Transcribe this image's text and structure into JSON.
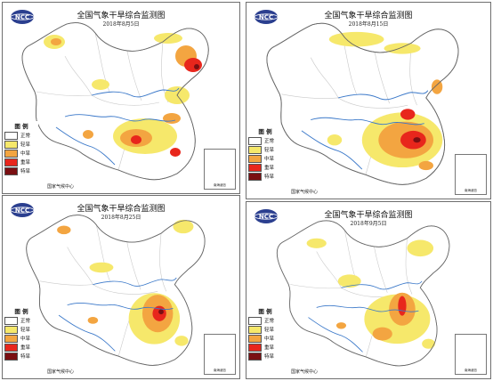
{
  "map_title": "全国气象干旱综合监测图",
  "agency": "国家气候中心",
  "logo_text": "NCC",
  "inset_label": "南海诸岛",
  "legend": {
    "title": "图 例",
    "items": [
      {
        "label": "正常",
        "color": "#ffffff"
      },
      {
        "label": "轻旱",
        "color": "#f6e86b"
      },
      {
        "label": "中旱",
        "color": "#f3a541"
      },
      {
        "label": "重旱",
        "color": "#e8261c"
      },
      {
        "label": "特旱",
        "color": "#7a0f12"
      }
    ]
  },
  "maps": [
    {
      "id": "p1",
      "date": "2018年8月5日"
    },
    {
      "id": "p2",
      "date": "2018年8月15日"
    },
    {
      "id": "p3",
      "date": "2018年8月25日"
    },
    {
      "id": "p4",
      "date": "2018年9月5日"
    }
  ]
}
